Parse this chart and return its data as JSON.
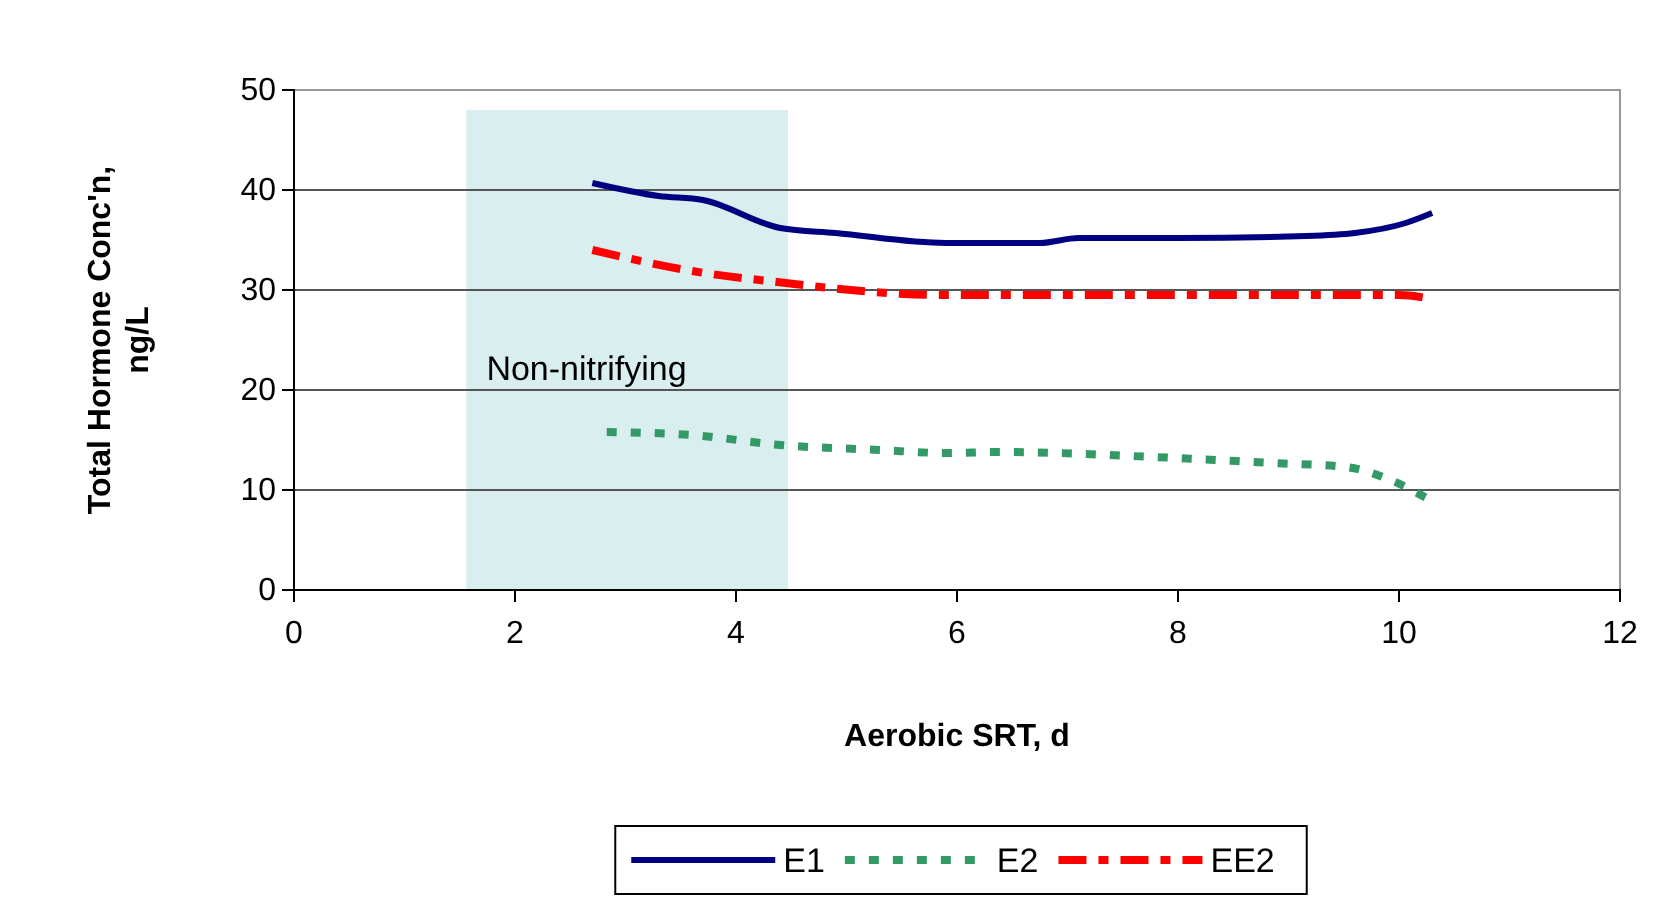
{
  "chart_data": {
    "type": "line",
    "xlabel": "Aerobic SRT, d",
    "ylabel": "Total Hormone Conc'n, ng/L",
    "xlim": [
      0,
      12
    ],
    "xticks": [
      0,
      2,
      4,
      6,
      8,
      10,
      12
    ],
    "ylim": [
      0,
      50
    ],
    "yticks": [
      0,
      10,
      20,
      30,
      40,
      50
    ],
    "grid": "y",
    "legend": "bottom",
    "bands": [
      {
        "axis": "x",
        "from": 1.56,
        "to": 4.47,
        "label": "Non-nitrifying",
        "color": "#d9eeee"
      }
    ],
    "series": [
      {
        "name": "E1",
        "color": "#000080",
        "line_style": "solid",
        "x": [
          2.7,
          3.3,
          3.7,
          4.4,
          4.9,
          5.9,
          6.75,
          7.1,
          8.0,
          9.16,
          9.6,
          10.06,
          10.3
        ],
        "values": [
          40.7,
          39.4,
          39,
          36.2,
          35.7,
          34.7,
          34.7,
          35.2,
          35.2,
          35.4,
          35.7,
          36.7,
          37.7
        ]
      },
      {
        "name": "E2",
        "color": "#339966",
        "line_style": "dotted",
        "x": [
          2.83,
          3.6,
          4.4,
          5.3,
          5.9,
          6.4,
          7.78,
          8.86,
          9.52,
          9.9,
          10.25
        ],
        "values": [
          15.8,
          15.5,
          14.5,
          14,
          13.7,
          13.8,
          13.3,
          12.7,
          12.3,
          11.1,
          9.2
        ]
      },
      {
        "name": "EE2",
        "color": "#ff0000",
        "line_style": "dashed",
        "x": [
          2.7,
          3.6,
          4.45,
          4.94,
          5.85,
          8.0,
          10.0,
          10.25
        ],
        "values": [
          34,
          31.9,
          30.7,
          30.1,
          29.5,
          29.5,
          29.5,
          29.2
        ]
      }
    ]
  }
}
